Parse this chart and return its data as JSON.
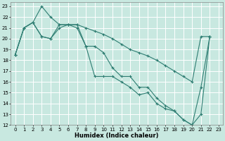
{
  "xlabel": "Humidex (Indice chaleur)",
  "bg_color": "#c8e8e0",
  "grid_color": "#ffffff",
  "line_color": "#2e7d72",
  "xlim": [
    -0.5,
    23.5
  ],
  "ylim": [
    12,
    23.4
  ],
  "xticks": [
    0,
    1,
    2,
    3,
    4,
    5,
    6,
    7,
    8,
    9,
    10,
    11,
    12,
    13,
    14,
    15,
    16,
    17,
    18,
    19,
    20,
    21,
    22,
    23
  ],
  "yticks": [
    12,
    13,
    14,
    15,
    16,
    17,
    18,
    19,
    20,
    21,
    22,
    23
  ],
  "line1_x": [
    0,
    1,
    2,
    3,
    4,
    5,
    6,
    7,
    8,
    9,
    10,
    11,
    12,
    13,
    14,
    15,
    16,
    17,
    18,
    19,
    20,
    21,
    22
  ],
  "line1_y": [
    18.5,
    21.0,
    21.5,
    23.0,
    22.0,
    21.3,
    21.3,
    21.3,
    21.0,
    20.7,
    20.4,
    20.0,
    19.5,
    19.0,
    18.7,
    18.4,
    18.0,
    17.5,
    17.0,
    16.5,
    16.0,
    20.2,
    20.2
  ],
  "line2_x": [
    0,
    1,
    2,
    3,
    4,
    5,
    6,
    7,
    8,
    9,
    10,
    11,
    12,
    13,
    14,
    15,
    16,
    17,
    18,
    19,
    20,
    21,
    22
  ],
  "line2_y": [
    18.5,
    21.0,
    21.5,
    20.2,
    20.0,
    21.3,
    21.3,
    21.3,
    19.3,
    19.3,
    18.7,
    17.3,
    16.5,
    16.5,
    15.5,
    15.5,
    14.5,
    13.8,
    13.3,
    12.5,
    12.0,
    13.0,
    20.2
  ],
  "line3_x": [
    0,
    1,
    2,
    3,
    4,
    5,
    6,
    7,
    8,
    9,
    10,
    11,
    12,
    13,
    14,
    15,
    16,
    17,
    18,
    19,
    20,
    21,
    22
  ],
  "line3_y": [
    18.5,
    21.0,
    21.5,
    20.2,
    20.0,
    21.0,
    21.3,
    21.0,
    19.3,
    16.5,
    16.5,
    16.5,
    16.0,
    15.5,
    14.8,
    15.0,
    14.0,
    13.5,
    13.3,
    12.5,
    12.0,
    15.5,
    20.2
  ]
}
